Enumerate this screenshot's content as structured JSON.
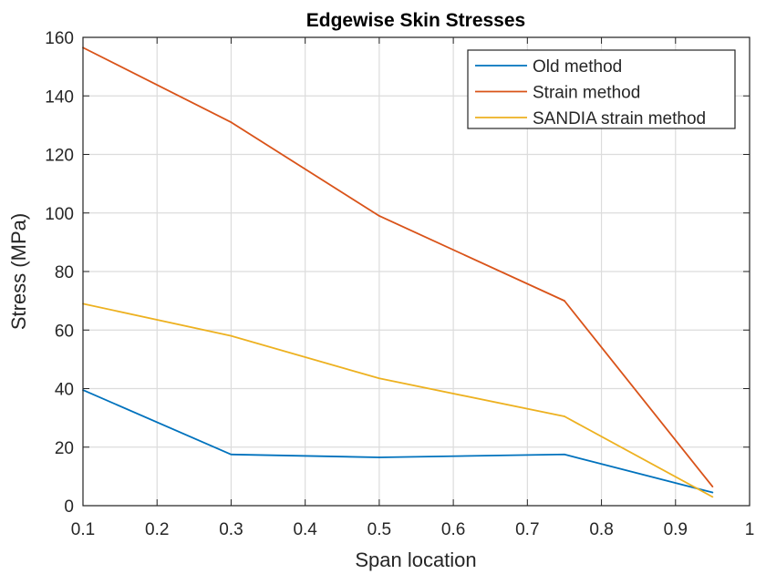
{
  "chart_data": {
    "type": "line",
    "title": "Edgewise Skin Stresses",
    "xlabel": "Span location",
    "ylabel": "Stress (MPa)",
    "xlim": [
      0.1,
      1
    ],
    "ylim": [
      0,
      160
    ],
    "xticks": [
      0.1,
      0.2,
      0.3,
      0.4,
      0.5,
      0.6,
      0.7,
      0.8,
      0.9,
      1
    ],
    "xtick_labels": [
      "0.1",
      "0.2",
      "0.3",
      "0.4",
      "0.5",
      "0.6",
      "0.7",
      "0.8",
      "0.9",
      "1"
    ],
    "yticks": [
      0,
      20,
      40,
      60,
      80,
      100,
      120,
      140,
      160
    ],
    "ytick_labels": [
      "0",
      "20",
      "40",
      "60",
      "80",
      "100",
      "120",
      "140",
      "160"
    ],
    "grid": true,
    "legend_position": "top-right",
    "series": [
      {
        "name": "Old method",
        "color": "#0072BD",
        "x": [
          0.1,
          0.3,
          0.5,
          0.75,
          0.95
        ],
        "y": [
          39.5,
          17.5,
          16.5,
          17.5,
          4.5
        ]
      },
      {
        "name": "Strain method",
        "color": "#D95319",
        "x": [
          0.1,
          0.3,
          0.5,
          0.75,
          0.95
        ],
        "y": [
          156.5,
          131,
          99,
          70,
          6.5
        ]
      },
      {
        "name": "SANDIA strain method",
        "color": "#EDB120",
        "x": [
          0.1,
          0.3,
          0.5,
          0.75,
          0.95
        ],
        "y": [
          69,
          58,
          43.5,
          30.5,
          3
        ]
      }
    ]
  }
}
